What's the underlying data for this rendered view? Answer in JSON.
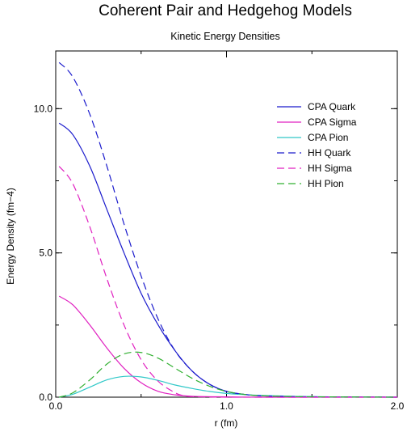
{
  "chart_data": {
    "type": "line",
    "title": "Coherent Pair and Hedgehog Models",
    "subtitle": "Kinetic Energy Densities",
    "xlabel": "r (fm)",
    "ylabel": "Energy Density (fm−4)",
    "xlim": [
      0.0,
      2.0
    ],
    "ylim": [
      0.0,
      12.0
    ],
    "xticks": [
      0.0,
      1.0,
      2.0
    ],
    "xtick_labels": [
      "0.0",
      "1.0",
      "2.0"
    ],
    "yticks": [
      0.0,
      5.0,
      10.0
    ],
    "ytick_labels": [
      "0.0",
      "5.0",
      "10.0"
    ],
    "grid": false,
    "legend_position": "top-right",
    "series": [
      {
        "name": "CPA Quark",
        "color": "#1a1acc",
        "dash": "solid",
        "x": [
          0.02,
          0.1,
          0.2,
          0.3,
          0.4,
          0.5,
          0.6,
          0.7,
          0.8,
          0.9,
          1.0,
          1.1,
          1.2,
          1.4,
          1.6,
          2.0
        ],
        "y": [
          9.5,
          9.1,
          8.0,
          6.5,
          5.0,
          3.6,
          2.5,
          1.6,
          0.9,
          0.45,
          0.2,
          0.1,
          0.05,
          0.02,
          0.01,
          0.0
        ]
      },
      {
        "name": "CPA Sigma",
        "color": "#e020c0",
        "dash": "solid",
        "x": [
          0.02,
          0.1,
          0.2,
          0.3,
          0.4,
          0.5,
          0.6,
          0.7,
          0.8,
          1.0,
          1.2,
          1.6,
          2.0
        ],
        "y": [
          3.5,
          3.2,
          2.5,
          1.7,
          1.0,
          0.5,
          0.2,
          0.08,
          0.03,
          0.01,
          0.0,
          0.0,
          0.0
        ]
      },
      {
        "name": "CPA Pion",
        "color": "#30c8c8",
        "dash": "solid",
        "x": [
          0.02,
          0.1,
          0.2,
          0.3,
          0.4,
          0.5,
          0.6,
          0.7,
          0.8,
          0.9,
          1.0,
          1.1,
          1.2,
          1.4,
          1.6,
          2.0
        ],
        "y": [
          0.0,
          0.1,
          0.35,
          0.6,
          0.72,
          0.7,
          0.58,
          0.42,
          0.3,
          0.2,
          0.13,
          0.09,
          0.06,
          0.03,
          0.01,
          0.0
        ]
      },
      {
        "name": "HH Quark",
        "color": "#1a1acc",
        "dash": "dashed",
        "x": [
          0.02,
          0.1,
          0.2,
          0.3,
          0.4,
          0.5,
          0.6,
          0.7,
          0.8,
          0.9,
          1.0,
          1.1,
          1.2,
          1.4,
          1.6,
          2.0
        ],
        "y": [
          11.6,
          11.1,
          9.8,
          8.0,
          6.0,
          4.2,
          2.7,
          1.6,
          0.9,
          0.45,
          0.2,
          0.1,
          0.05,
          0.02,
          0.01,
          0.0
        ]
      },
      {
        "name": "HH Sigma",
        "color": "#e020c0",
        "dash": "dashed",
        "x": [
          0.02,
          0.1,
          0.2,
          0.3,
          0.4,
          0.5,
          0.6,
          0.7,
          0.75,
          0.8,
          1.0,
          1.4,
          2.0
        ],
        "y": [
          8.0,
          7.4,
          5.9,
          4.1,
          2.5,
          1.3,
          0.55,
          0.15,
          0.05,
          0.02,
          0.0,
          0.0,
          0.0
        ]
      },
      {
        "name": "HH Pion",
        "color": "#30b030",
        "dash": "dashed",
        "x": [
          0.02,
          0.1,
          0.2,
          0.3,
          0.4,
          0.5,
          0.6,
          0.7,
          0.8,
          0.9,
          1.0,
          1.1,
          1.2,
          1.4,
          1.6,
          2.0
        ],
        "y": [
          0.0,
          0.15,
          0.6,
          1.15,
          1.5,
          1.55,
          1.35,
          1.0,
          0.65,
          0.38,
          0.2,
          0.1,
          0.05,
          0.02,
          0.01,
          0.0
        ]
      }
    ]
  }
}
